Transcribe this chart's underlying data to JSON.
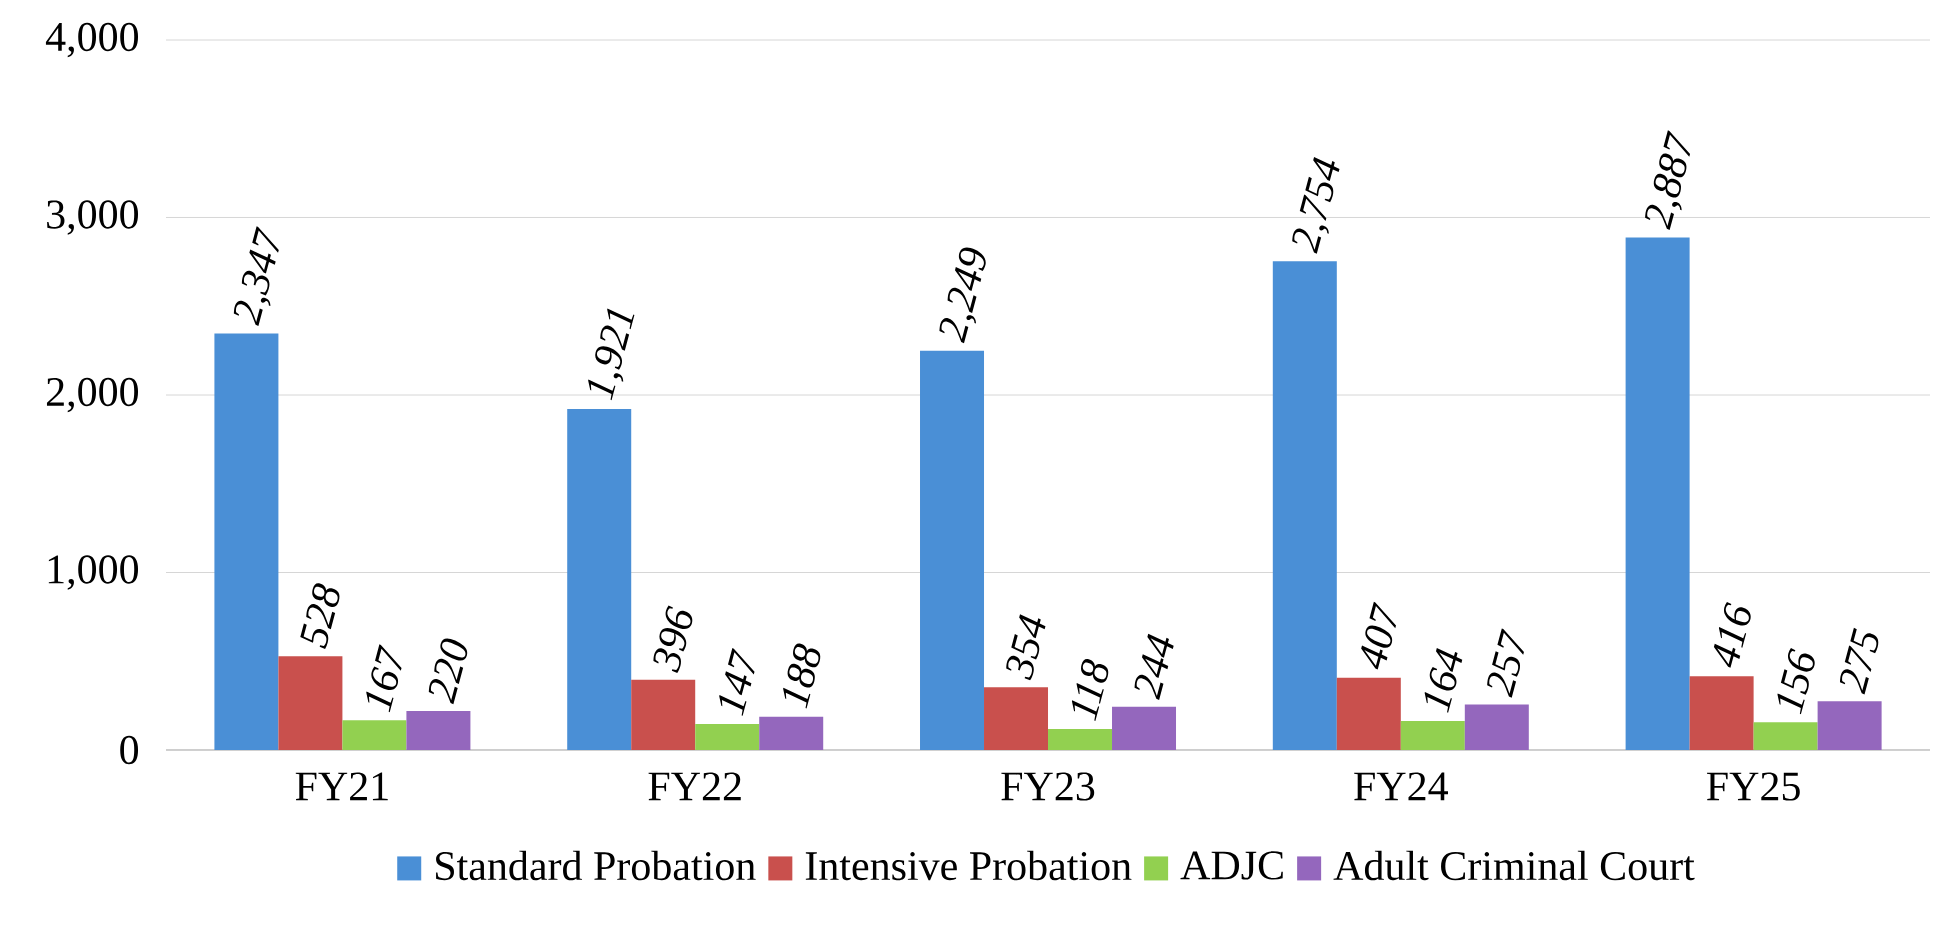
{
  "chart_data": {
    "type": "bar",
    "categories": [
      "FY21",
      "FY22",
      "FY23",
      "FY24",
      "FY25"
    ],
    "series": [
      {
        "name": "Standard Probation",
        "color": "#4a8fd6",
        "values": [
          2347,
          1921,
          2249,
          2754,
          2887
        ],
        "value_labels": [
          "2,347",
          "1,921",
          "2,249",
          "2,754",
          "2,887"
        ]
      },
      {
        "name": "Intensive Probation",
        "color": "#c9504d",
        "values": [
          528,
          396,
          354,
          407,
          416
        ],
        "value_labels": [
          "528",
          "396",
          "354",
          "407",
          "416"
        ]
      },
      {
        "name": "ADJC",
        "color": "#92d050",
        "values": [
          167,
          147,
          118,
          164,
          156
        ],
        "value_labels": [
          "167",
          "147",
          "118",
          "164",
          "156"
        ]
      },
      {
        "name": "Adult Criminal Court",
        "color": "#9467bd",
        "values": [
          220,
          188,
          244,
          257,
          275
        ],
        "value_labels": [
          "220",
          "188",
          "244",
          "257",
          "275"
        ]
      }
    ],
    "ylim": [
      0,
      4000
    ],
    "yticks": [
      0,
      {
        "value": 1000,
        "label": "1,000"
      },
      {
        "value": 2000,
        "label": "2,000"
      },
      {
        "value": 3000,
        "label": "3,000"
      },
      {
        "value": 4000,
        "label": "4,000"
      }
    ],
    "grid": "y",
    "legend": "bottom"
  }
}
